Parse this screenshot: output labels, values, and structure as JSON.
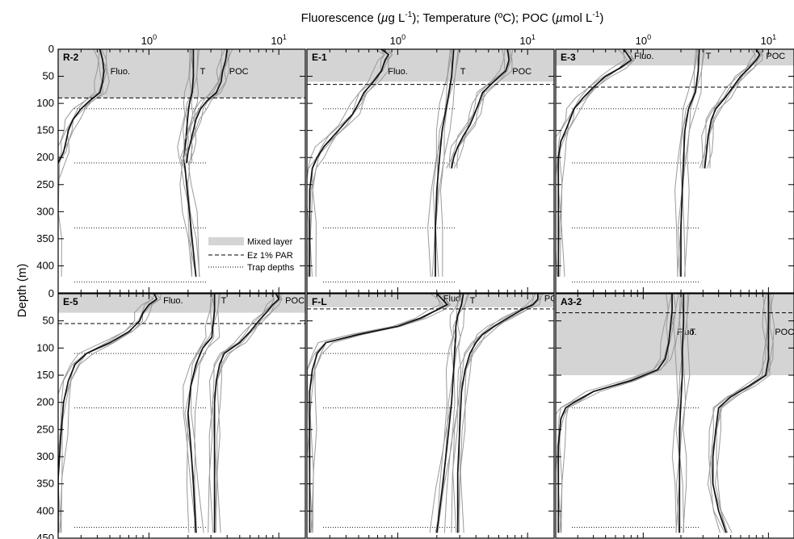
{
  "title": "Fluorescence (µg L⁻¹); Temperature (ºC); POC (µmol L⁻¹)",
  "title_parts": {
    "p1": "Fluorescence (",
    "mu1": "µ",
    "p2": "g L",
    "sup1": "-1",
    "p3": "); Temperature (ºC); POC (",
    "mu2": "µ",
    "p4": "mol L",
    "sup2": "-1",
    "p5": ")"
  },
  "ylabel": "Depth (m)",
  "legend": {
    "mixed": "Mixed layer",
    "ez": "Ez 1% PAR",
    "trap": "Trap depths"
  },
  "curve_labels": {
    "fluo": "Fluo.",
    "temp": "T",
    "poc": "POC"
  },
  "x_ticks": [
    {
      "base": "10",
      "exp": "0",
      "value": 1
    },
    {
      "base": "10",
      "exp": "1",
      "value": 10
    }
  ],
  "colors": {
    "mixed_layer": "#d4d4d4",
    "profile_grey": "#9a9a9a",
    "profile_mean": "#111111"
  },
  "chart_data": [
    {
      "type": "line",
      "station": "R-2",
      "x_scale": "log",
      "xlim": [
        0.2,
        16
      ],
      "ylim": [
        0,
        450
      ],
      "y_ticks": [
        0,
        50,
        100,
        150,
        200,
        250,
        300,
        350,
        400
      ],
      "mixed_layer": [
        0,
        90
      ],
      "ez": 90,
      "traps": [
        110,
        210,
        330,
        430
      ],
      "series": [
        {
          "name": "Fluo.",
          "depth": [
            0,
            20,
            40,
            60,
            80,
            95,
            110,
            130,
            150,
            170,
            190,
            210,
            240,
            300,
            350,
            420
          ],
          "values": [
            0.42,
            0.44,
            0.45,
            0.44,
            0.42,
            0.35,
            0.3,
            0.26,
            0.24,
            0.23,
            0.22,
            0.2,
            0.19,
            0.19,
            0.19,
            0.19
          ]
        },
        {
          "name": "T",
          "depth": [
            0,
            50,
            80,
            100,
            120,
            150,
            180,
            200,
            220,
            250,
            300,
            350,
            420
          ],
          "values": [
            2.2,
            2.2,
            2.15,
            2.05,
            2.0,
            1.95,
            1.9,
            1.85,
            1.9,
            1.95,
            2.05,
            2.15,
            2.3
          ]
        },
        {
          "name": "POC",
          "depth": [
            0,
            20,
            40,
            60,
            80,
            95,
            110,
            130,
            150,
            170,
            190,
            210
          ],
          "values": [
            4,
            3.9,
            3.7,
            3.6,
            3.3,
            2.8,
            2.5,
            2.3,
            2.2,
            2.1,
            2.0,
            1.95
          ]
        }
      ],
      "label_depth": {
        "Fluo.": 40,
        "T": 40,
        "POC": 40
      }
    },
    {
      "type": "line",
      "station": "E-1",
      "x_scale": "log",
      "xlim": [
        0.2,
        16
      ],
      "ylim": [
        0,
        450
      ],
      "y_ticks": [
        0,
        50,
        100,
        150,
        200,
        250,
        300,
        350,
        400
      ],
      "mixed_layer": [
        0,
        60
      ],
      "ez": 65,
      "traps": [
        110,
        210,
        330,
        430
      ],
      "series": [
        {
          "name": "Fluo.",
          "depth": [
            0,
            10,
            20,
            40,
            60,
            80,
            100,
            120,
            140,
            160,
            180,
            200,
            220,
            260,
            320,
            420
          ],
          "values": [
            0.75,
            0.85,
            0.8,
            0.75,
            0.65,
            0.55,
            0.5,
            0.45,
            0.38,
            0.32,
            0.27,
            0.24,
            0.22,
            0.21,
            0.21,
            0.21
          ]
        },
        {
          "name": "T",
          "depth": [
            0,
            50,
            100,
            150,
            200,
            260,
            330,
            420
          ],
          "values": [
            2.7,
            2.6,
            2.4,
            2.2,
            2.1,
            2.0,
            1.95,
            1.95
          ]
        },
        {
          "name": "POC",
          "depth": [
            0,
            20,
            40,
            60,
            80,
            100,
            120,
            140,
            160,
            180,
            200,
            220
          ],
          "values": [
            7,
            7.2,
            6.8,
            5.5,
            4.5,
            4.2,
            3.9,
            3.6,
            3.2,
            2.9,
            2.7,
            2.6
          ]
        }
      ],
      "label_depth": {
        "Fluo.": 40,
        "T": 40,
        "POC": 40
      }
    },
    {
      "type": "line",
      "station": "E-3",
      "x_scale": "log",
      "xlim": [
        0.2,
        16
      ],
      "ylim": [
        0,
        450
      ],
      "y_ticks": [
        0,
        50,
        100,
        150,
        200,
        250,
        300,
        350,
        400
      ],
      "mixed_layer": [
        0,
        30
      ],
      "ez": 70,
      "traps": [
        110,
        210,
        330,
        430
      ],
      "series": [
        {
          "name": "Fluo.",
          "depth": [
            0,
            10,
            20,
            35,
            50,
            70,
            90,
            110,
            130,
            150,
            170,
            200,
            250,
            320,
            420
          ],
          "values": [
            0.7,
            0.75,
            0.8,
            0.65,
            0.5,
            0.4,
            0.33,
            0.28,
            0.26,
            0.24,
            0.22,
            0.21,
            0.21,
            0.21,
            0.21
          ]
        },
        {
          "name": "T",
          "depth": [
            0,
            40,
            80,
            110,
            150,
            200,
            260,
            330,
            420
          ],
          "values": [
            2.8,
            2.75,
            2.6,
            2.3,
            2.15,
            2.1,
            2.05,
            2.0,
            2.0
          ]
        },
        {
          "name": "POC",
          "depth": [
            0,
            10,
            20,
            35,
            50,
            70,
            90,
            110,
            130,
            160,
            190,
            220
          ],
          "values": [
            8,
            8.5,
            8,
            7,
            6,
            5.2,
            4.5,
            3.8,
            3.5,
            3.3,
            3.2,
            3.1
          ]
        }
      ],
      "label_depth": {
        "Fluo.": 12,
        "T": 12,
        "POC": 12
      }
    },
    {
      "type": "line",
      "station": "E-5",
      "x_scale": "log",
      "xlim": [
        0.2,
        16
      ],
      "ylim": [
        0,
        450
      ],
      "y_ticks": [
        0,
        50,
        100,
        150,
        200,
        250,
        300,
        350,
        400
      ],
      "mixed_layer": [
        0,
        35
      ],
      "ez": 55,
      "traps": [
        110,
        210,
        430
      ],
      "series": [
        {
          "name": "Fluo.",
          "depth": [
            0,
            10,
            20,
            35,
            50,
            70,
            90,
            110,
            130,
            160,
            200,
            260,
            340,
            440
          ],
          "values": [
            1.1,
            1.15,
            1.0,
            0.9,
            0.85,
            0.7,
            0.5,
            0.33,
            0.27,
            0.24,
            0.22,
            0.21,
            0.2,
            0.2
          ]
        },
        {
          "name": "T",
          "depth": [
            0,
            30,
            60,
            80,
            100,
            130,
            170,
            220,
            280,
            350,
            440
          ],
          "values": [
            3.2,
            3.2,
            3.1,
            3.05,
            2.6,
            2.3,
            2.1,
            2.0,
            2.1,
            2.2,
            2.3
          ]
        },
        {
          "name": "POC",
          "depth": [
            0,
            10,
            20,
            35,
            50,
            70,
            90,
            110,
            130,
            160,
            200,
            260,
            340,
            440
          ],
          "values": [
            9.5,
            10,
            9,
            8,
            7,
            6,
            5,
            3.8,
            3.5,
            3.3,
            3.2,
            3.2,
            3.2,
            3.2
          ]
        }
      ],
      "label_depth": {
        "Fluo.": 12,
        "T": 12,
        "POC": 12
      }
    },
    {
      "type": "line",
      "station": "F-L",
      "x_scale": "log",
      "xlim": [
        0.2,
        16
      ],
      "ylim": [
        0,
        450
      ],
      "y_ticks": [
        0,
        50,
        100,
        150,
        200,
        250,
        300,
        350,
        400
      ],
      "mixed_layer": [
        0,
        25
      ],
      "ez": 28,
      "traps": [
        110,
        210,
        430
      ],
      "series": [
        {
          "name": "Fluo.",
          "depth": [
            0,
            10,
            20,
            30,
            45,
            60,
            75,
            90,
            110,
            140,
            180,
            250,
            330,
            440
          ],
          "values": [
            2,
            2.2,
            2.4,
            2,
            1.5,
            1.0,
            0.5,
            0.28,
            0.24,
            0.22,
            0.21,
            0.21,
            0.21,
            0.21
          ]
        },
        {
          "name": "T",
          "depth": [
            0,
            20,
            40,
            60,
            80,
            100,
            140,
            200,
            280,
            360,
            440
          ],
          "values": [
            3.2,
            3.1,
            2.9,
            2.8,
            2.8,
            2.75,
            2.7,
            2.6,
            2.4,
            2.2,
            2.0
          ]
        },
        {
          "name": "POC",
          "depth": [
            0,
            10,
            20,
            30,
            45,
            60,
            75,
            90,
            110,
            140,
            180,
            250,
            330,
            440
          ],
          "values": [
            12,
            12,
            11,
            9,
            7,
            5.5,
            4.5,
            4,
            3.6,
            3.3,
            3.1,
            3.0,
            2.9,
            2.9
          ]
        }
      ],
      "label_depth": {
        "Fluo.": 8,
        "T": 12,
        "POC": 8
      }
    },
    {
      "type": "line",
      "station": "A3-2",
      "x_scale": "log",
      "xlim": [
        0.2,
        16
      ],
      "ylim": [
        0,
        450
      ],
      "y_ticks": [
        0,
        50,
        100,
        150,
        200,
        250,
        300,
        350,
        400
      ],
      "mixed_layer": [
        0,
        150
      ],
      "ez": 35,
      "traps": [
        210,
        430
      ],
      "series": [
        {
          "name": "Fluo.",
          "depth": [
            0,
            30,
            60,
            90,
            120,
            140,
            160,
            180,
            200,
            210,
            230,
            280,
            350,
            440
          ],
          "values": [
            1.7,
            1.7,
            1.65,
            1.6,
            1.5,
            1.3,
            0.8,
            0.4,
            0.28,
            0.24,
            0.22,
            0.21,
            0.21,
            0.21
          ]
        },
        {
          "name": "T",
          "depth": [
            0,
            50,
            100,
            150,
            200,
            250,
            300,
            350,
            440
          ],
          "values": [
            2.1,
            2.1,
            2.05,
            2.05,
            2.0,
            1.95,
            1.95,
            1.95,
            1.95
          ]
        },
        {
          "name": "POC",
          "depth": [
            0,
            30,
            60,
            90,
            120,
            150,
            170,
            190,
            210,
            250,
            300,
            350,
            400,
            440
          ],
          "values": [
            10,
            10,
            10,
            10,
            10,
            9.5,
            7,
            5,
            4,
            3.8,
            3.6,
            3.6,
            4,
            4.6
          ]
        }
      ],
      "label_depth": {
        "Fluo.": 70,
        "T": 70,
        "POC": 70
      }
    }
  ]
}
